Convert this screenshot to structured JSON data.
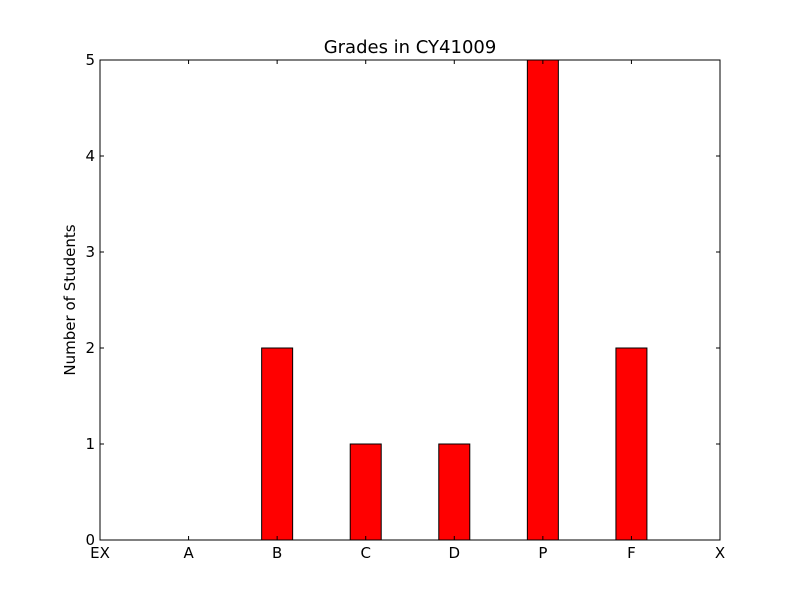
{
  "chart_data": {
    "type": "bar",
    "title": "Grades in CY41009",
    "xlabel": "",
    "ylabel": "Number of Students",
    "categories": [
      "EX",
      "A",
      "B",
      "C",
      "D",
      "P",
      "F",
      "X"
    ],
    "values": [
      0,
      0,
      2,
      1,
      1,
      5,
      2,
      0
    ],
    "ylim": [
      0,
      5
    ],
    "yticks": [
      "0",
      "1",
      "2",
      "3",
      "4",
      "5"
    ],
    "grid": false,
    "colors": {
      "bar_fill": "#ff0000",
      "bar_edge": "#000000",
      "axes": "#000000",
      "background": "#ffffff"
    }
  }
}
